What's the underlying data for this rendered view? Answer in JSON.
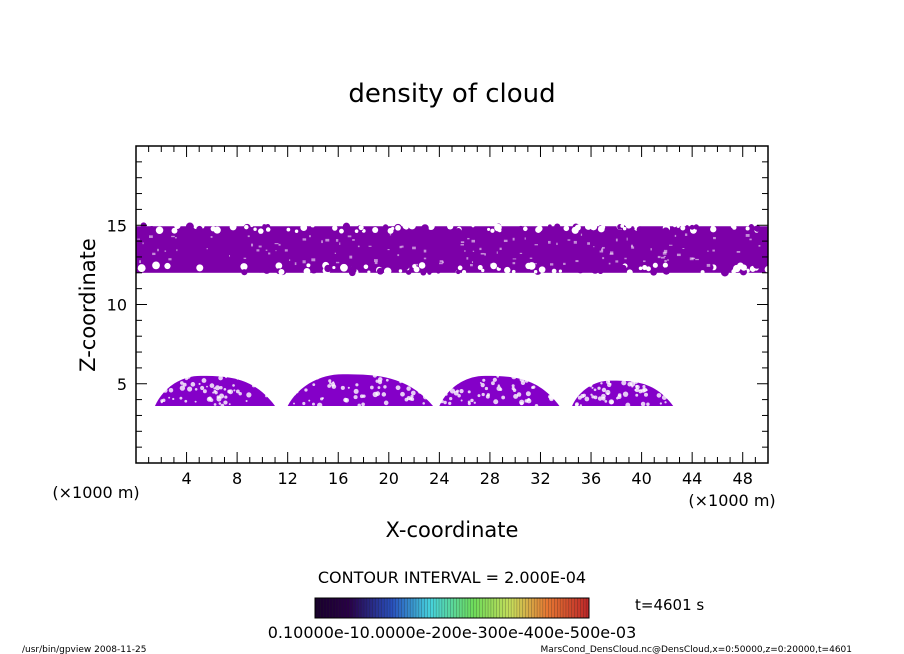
{
  "chart_data": {
    "type": "contour",
    "title": "density of cloud",
    "xlabel": "X-coordinate",
    "ylabel": "Z-coordinate",
    "x_unit": "(×1000 m)",
    "xlim": [
      0,
      50
    ],
    "ylim": [
      0,
      20
    ],
    "x_ticks": [
      4,
      8,
      12,
      16,
      20,
      24,
      28,
      32,
      36,
      40,
      44,
      48
    ],
    "y_ticks": [
      5,
      10,
      15
    ],
    "contour_interval": "CONTOUR INTERVAL = 2.000E-04",
    "time_label": "t=4601 s",
    "colorbar_label": "0.10000e-10.0000e-200e-300e-400e-500e-03",
    "upper_layer": {
      "x": [
        0,
        50
      ],
      "z_range": [
        12,
        15
      ],
      "color": "#7c00a8"
    },
    "lower_clouds": [
      {
        "x_range": [
          1.5,
          11
        ],
        "z_range": [
          3.6,
          5.5
        ]
      },
      {
        "x_range": [
          12,
          23.5
        ],
        "z_range": [
          3.6,
          5.6
        ]
      },
      {
        "x_range": [
          24,
          33.5
        ],
        "z_range": [
          3.6,
          5.5
        ]
      },
      {
        "x_range": [
          34.5,
          42.5
        ],
        "z_range": [
          3.6,
          5.2
        ]
      }
    ],
    "lower_color": "#8400c8"
  },
  "footer": {
    "left": "/usr/bin/gpview   2008-11-25",
    "right": "MarsCond_DensCloud.nc@DensCloud,x=0:50000,z=0:20000,t=4601"
  },
  "colors": {
    "axis": "#000000",
    "cloud_primary": "#7c00a8",
    "cloud_secondary": "#8800cc"
  }
}
